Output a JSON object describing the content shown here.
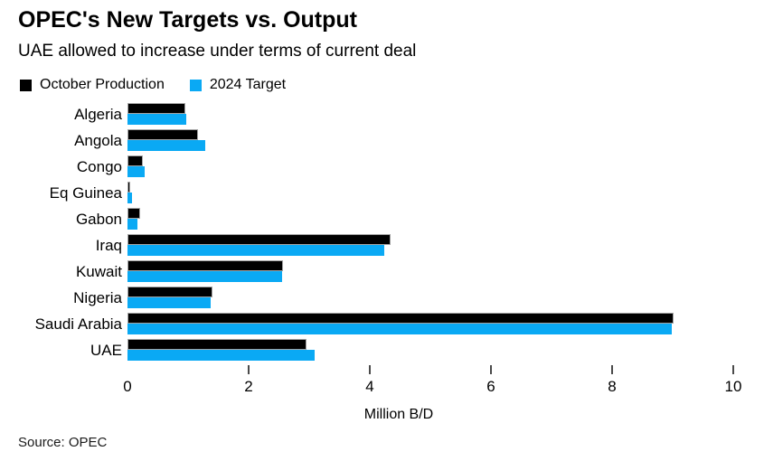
{
  "chart_data": {
    "type": "bar",
    "orientation": "horizontal",
    "title": "OPEC's New Targets vs. Output",
    "subtitle": "UAE allowed to increase under terms of current deal",
    "xlabel": "Million B/D",
    "source": "Source: OPEC",
    "xlim": [
      0,
      10
    ],
    "xticks": [
      0,
      2,
      4,
      6,
      8,
      10
    ],
    "grid": false,
    "legend_position": "top-left",
    "accent_color": "#0aa9f4",
    "bar_outline_color": "#a3a3a3",
    "categories": [
      "Algeria",
      "Angola",
      "Congo",
      "Eq Guinea",
      "Gabon",
      "Iraq",
      "Kuwait",
      "Nigeria",
      "Saudi Arabia",
      "UAE"
    ],
    "series": [
      {
        "name": "October Production",
        "color": "#000000",
        "values": [
          0.96,
          1.16,
          0.26,
          0.05,
          0.21,
          4.35,
          2.56,
          1.41,
          9.01,
          2.95
        ]
      },
      {
        "name": "2024 Target",
        "color": "#0aa9f4",
        "values": [
          0.97,
          1.28,
          0.28,
          0.07,
          0.16,
          4.24,
          2.55,
          1.38,
          8.98,
          3.09
        ]
      }
    ]
  }
}
